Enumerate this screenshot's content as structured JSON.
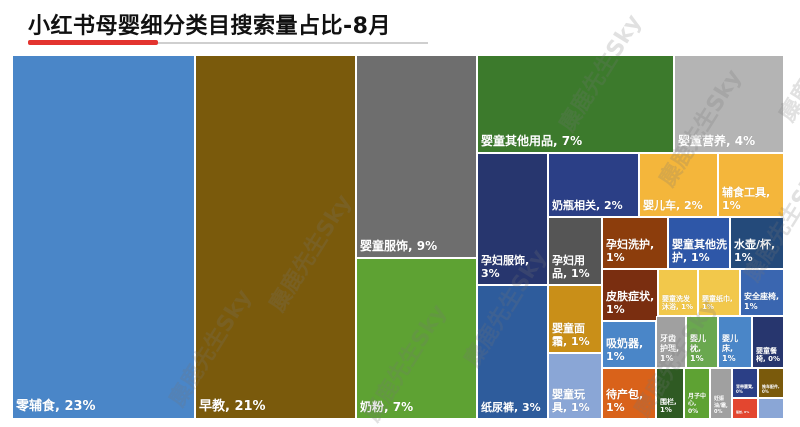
{
  "title": "小红书母婴细分类目搜索量占比-8月",
  "watermark": "麋鹿先生Sky",
  "chart_data": {
    "type": "treemap",
    "title": "小红书母婴细分类目搜索量占比-8月",
    "items": [
      {
        "name": "零辅食",
        "value": 23,
        "label": "零辅食, 23%",
        "color": "#4a86c8"
      },
      {
        "name": "早教",
        "value": 21,
        "label": "早教, 21%",
        "color": "#7a5a0c"
      },
      {
        "name": "婴童服饰",
        "value": 9,
        "label": "婴童服饰, 9%",
        "color": "#6e6e6e"
      },
      {
        "name": "奶粉",
        "value": 7,
        "label": "奶粉, 7%",
        "color": "#5ea233"
      },
      {
        "name": "婴童其他用品",
        "value": 7,
        "label": "婴童其他用品, 7%",
        "color": "#3c7a2c"
      },
      {
        "name": "婴童营养",
        "value": 4,
        "label": "婴童营养, 4%",
        "color": "#b4b4b4"
      },
      {
        "name": "孕妇服饰",
        "value": 3,
        "label": "孕妇服饰, 3%",
        "color": "#27366e"
      },
      {
        "name": "纸尿裤",
        "value": 3,
        "label": "纸尿裤, 3%",
        "color": "#2e5c9c"
      },
      {
        "name": "奶瓶相关",
        "value": 2,
        "label": "奶瓶相关, 2%",
        "color": "#2b3f86"
      },
      {
        "name": "婴儿车",
        "value": 2,
        "label": "婴儿车, 2%",
        "color": "#f4b63b"
      },
      {
        "name": "辅食工具",
        "value": 1,
        "label": "辅食工具, 1%",
        "color": "#f4b63b"
      },
      {
        "name": "孕妇用品",
        "value": 1,
        "label": "孕妇用品, 1%",
        "color": "#555555"
      },
      {
        "name": "孕妇洗护",
        "value": 1,
        "label": "孕妇洗护, 1%",
        "color": "#8c3d0c"
      },
      {
        "name": "婴童其他洗护",
        "value": 1,
        "label": "婴童其他洗护, 1%",
        "color": "#2e57a8"
      },
      {
        "name": "水壶/杯",
        "value": 1,
        "label": "水壶/杯, 1%",
        "color": "#244a7a"
      },
      {
        "name": "婴童面霜",
        "value": 1,
        "label": "婴童面霜, 1%",
        "color": "#c98f18"
      },
      {
        "name": "婴童玩具",
        "value": 1,
        "label": "婴童玩具, 1%",
        "color": "#8aa6d6"
      },
      {
        "name": "皮肤症状",
        "value": 1,
        "label": "皮肤症状, 1%",
        "color": "#7a2e10"
      },
      {
        "name": "婴童洗发沐浴",
        "value": 1,
        "label": "婴童洗发沐浴, 1%",
        "color": "#f2c84b"
      },
      {
        "name": "婴童纸巾",
        "value": 1,
        "label": "婴童纸巾, 1%",
        "color": "#f2c84b"
      },
      {
        "name": "安全座椅",
        "value": 1,
        "label": "安全座椅, 1%",
        "color": "#3a66b0"
      },
      {
        "name": "吸奶器",
        "value": 1,
        "label": "吸奶器, 1%",
        "color": "#4a86c8"
      },
      {
        "name": "牙齿护理",
        "value": 1,
        "label": "牙齿护理, 1%",
        "color": "#a0a0a0"
      },
      {
        "name": "婴儿枕",
        "value": 1,
        "label": "婴儿枕, 1%",
        "color": "#6aa84f"
      },
      {
        "name": "婴儿床",
        "value": 1,
        "label": "婴儿床, 1%",
        "color": "#4a86c8"
      },
      {
        "name": "婴童餐椅",
        "value": 0,
        "label": "婴童餐椅, 0%",
        "color": "#27366e"
      },
      {
        "name": "待产包",
        "value": 1,
        "label": "待产包, 1%",
        "color": "#d9621a"
      },
      {
        "name": "围栏",
        "value": 1,
        "label": "围栏, 1%",
        "color": "#2f5a23"
      },
      {
        "name": "月子中心",
        "value": 0,
        "label": "月子中心, 0%",
        "color": "#5ea233"
      },
      {
        "name": "妊娠油/霜",
        "value": 0,
        "label": "妊娠油/霜, 0%",
        "color": "#a0a0a0"
      },
      {
        "name": "背带腰凳",
        "value": 0,
        "label": "背带腰凳, 0%",
        "color": "#2b3f86"
      },
      {
        "name": "婴童推车配件",
        "value": 0,
        "label": "推车配件, 0%",
        "color": "#7a5a0c"
      },
      {
        "name": "驱蚊",
        "value": 0,
        "label": "驱蚊, 0%",
        "color": "#e3462f"
      },
      {
        "name": "其他小类",
        "value": 0,
        "label": "",
        "color": "#8aa6d6"
      }
    ]
  }
}
